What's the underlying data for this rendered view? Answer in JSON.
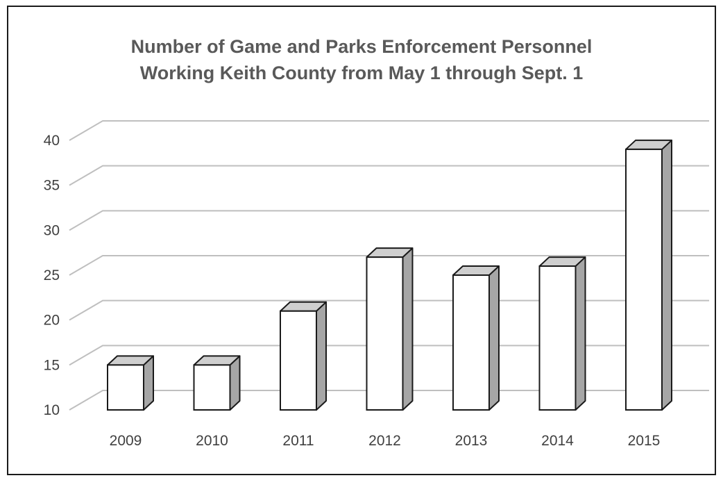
{
  "chart_data": {
    "type": "bar",
    "title": "Number of Game and Parks Enforcement Personnel Working Keith County from May 1 through Sept. 1",
    "title_lines": [
      "Number of Game and Parks Enforcement Personnel",
      "Working Keith County from May 1 through Sept. 1"
    ],
    "xlabel": "",
    "ylabel": "",
    "categories": [
      "2009",
      "2010",
      "2011",
      "2012",
      "2013",
      "2014",
      "2015"
    ],
    "values": [
      15,
      15,
      21,
      27,
      25,
      26,
      39
    ],
    "ylim": [
      10,
      40
    ],
    "yticks": [
      10,
      15,
      20,
      25,
      30,
      35,
      40
    ],
    "grid": true,
    "legend": "none",
    "style": "3d-column",
    "colors": {
      "bar_front": "#ffffff",
      "bar_side": "#a6a6a6",
      "bar_top": "#cfcfcf",
      "bar_outline": "#1a1a1a",
      "grid": "#bfbfbf",
      "text": "#404040",
      "title": "#595959"
    }
  }
}
